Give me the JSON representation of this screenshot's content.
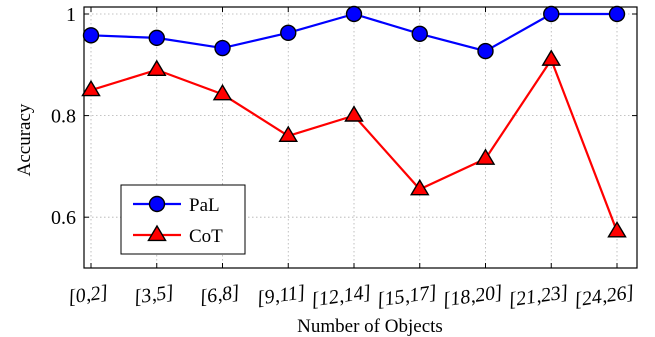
{
  "chart_data": {
    "type": "line",
    "categories": [
      "[0,2]",
      "[3,5]",
      "[6,8]",
      "[9,11]",
      "[12,14]",
      "[15,17]",
      "[18,20]",
      "[21,23]",
      "[24,26]"
    ],
    "series": [
      {
        "name": "PaL",
        "color": "#0000ff",
        "marker": "circle",
        "values": [
          0.958,
          0.953,
          0.933,
          0.963,
          1.0,
          0.961,
          0.927,
          1.0,
          1.0
        ]
      },
      {
        "name": "CoT",
        "color": "#ff0000",
        "marker": "triangle",
        "values": [
          0.85,
          0.89,
          0.842,
          0.76,
          0.8,
          0.655,
          0.715,
          0.91,
          0.572
        ]
      }
    ],
    "xlabel": "Number of Objects",
    "ylabel": "Accuracy",
    "ylim": [
      0.5,
      1.0
    ],
    "yticks": [
      0.6,
      0.8,
      1.0
    ],
    "ytick_labels": [
      "0.6",
      "0.8",
      "1"
    ],
    "grid": true,
    "legend_position": "bottom-left"
  }
}
